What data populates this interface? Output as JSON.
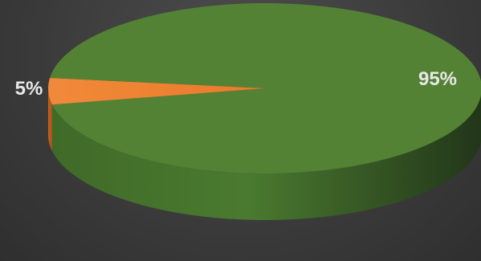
{
  "chart_data": {
    "type": "pie",
    "style": "3d",
    "title": "",
    "slices": [
      {
        "label": "95%",
        "value": 95,
        "color": "#548235"
      },
      {
        "label": "5%",
        "value": 5,
        "color": "#ed7d31"
      }
    ],
    "legend": "none"
  }
}
